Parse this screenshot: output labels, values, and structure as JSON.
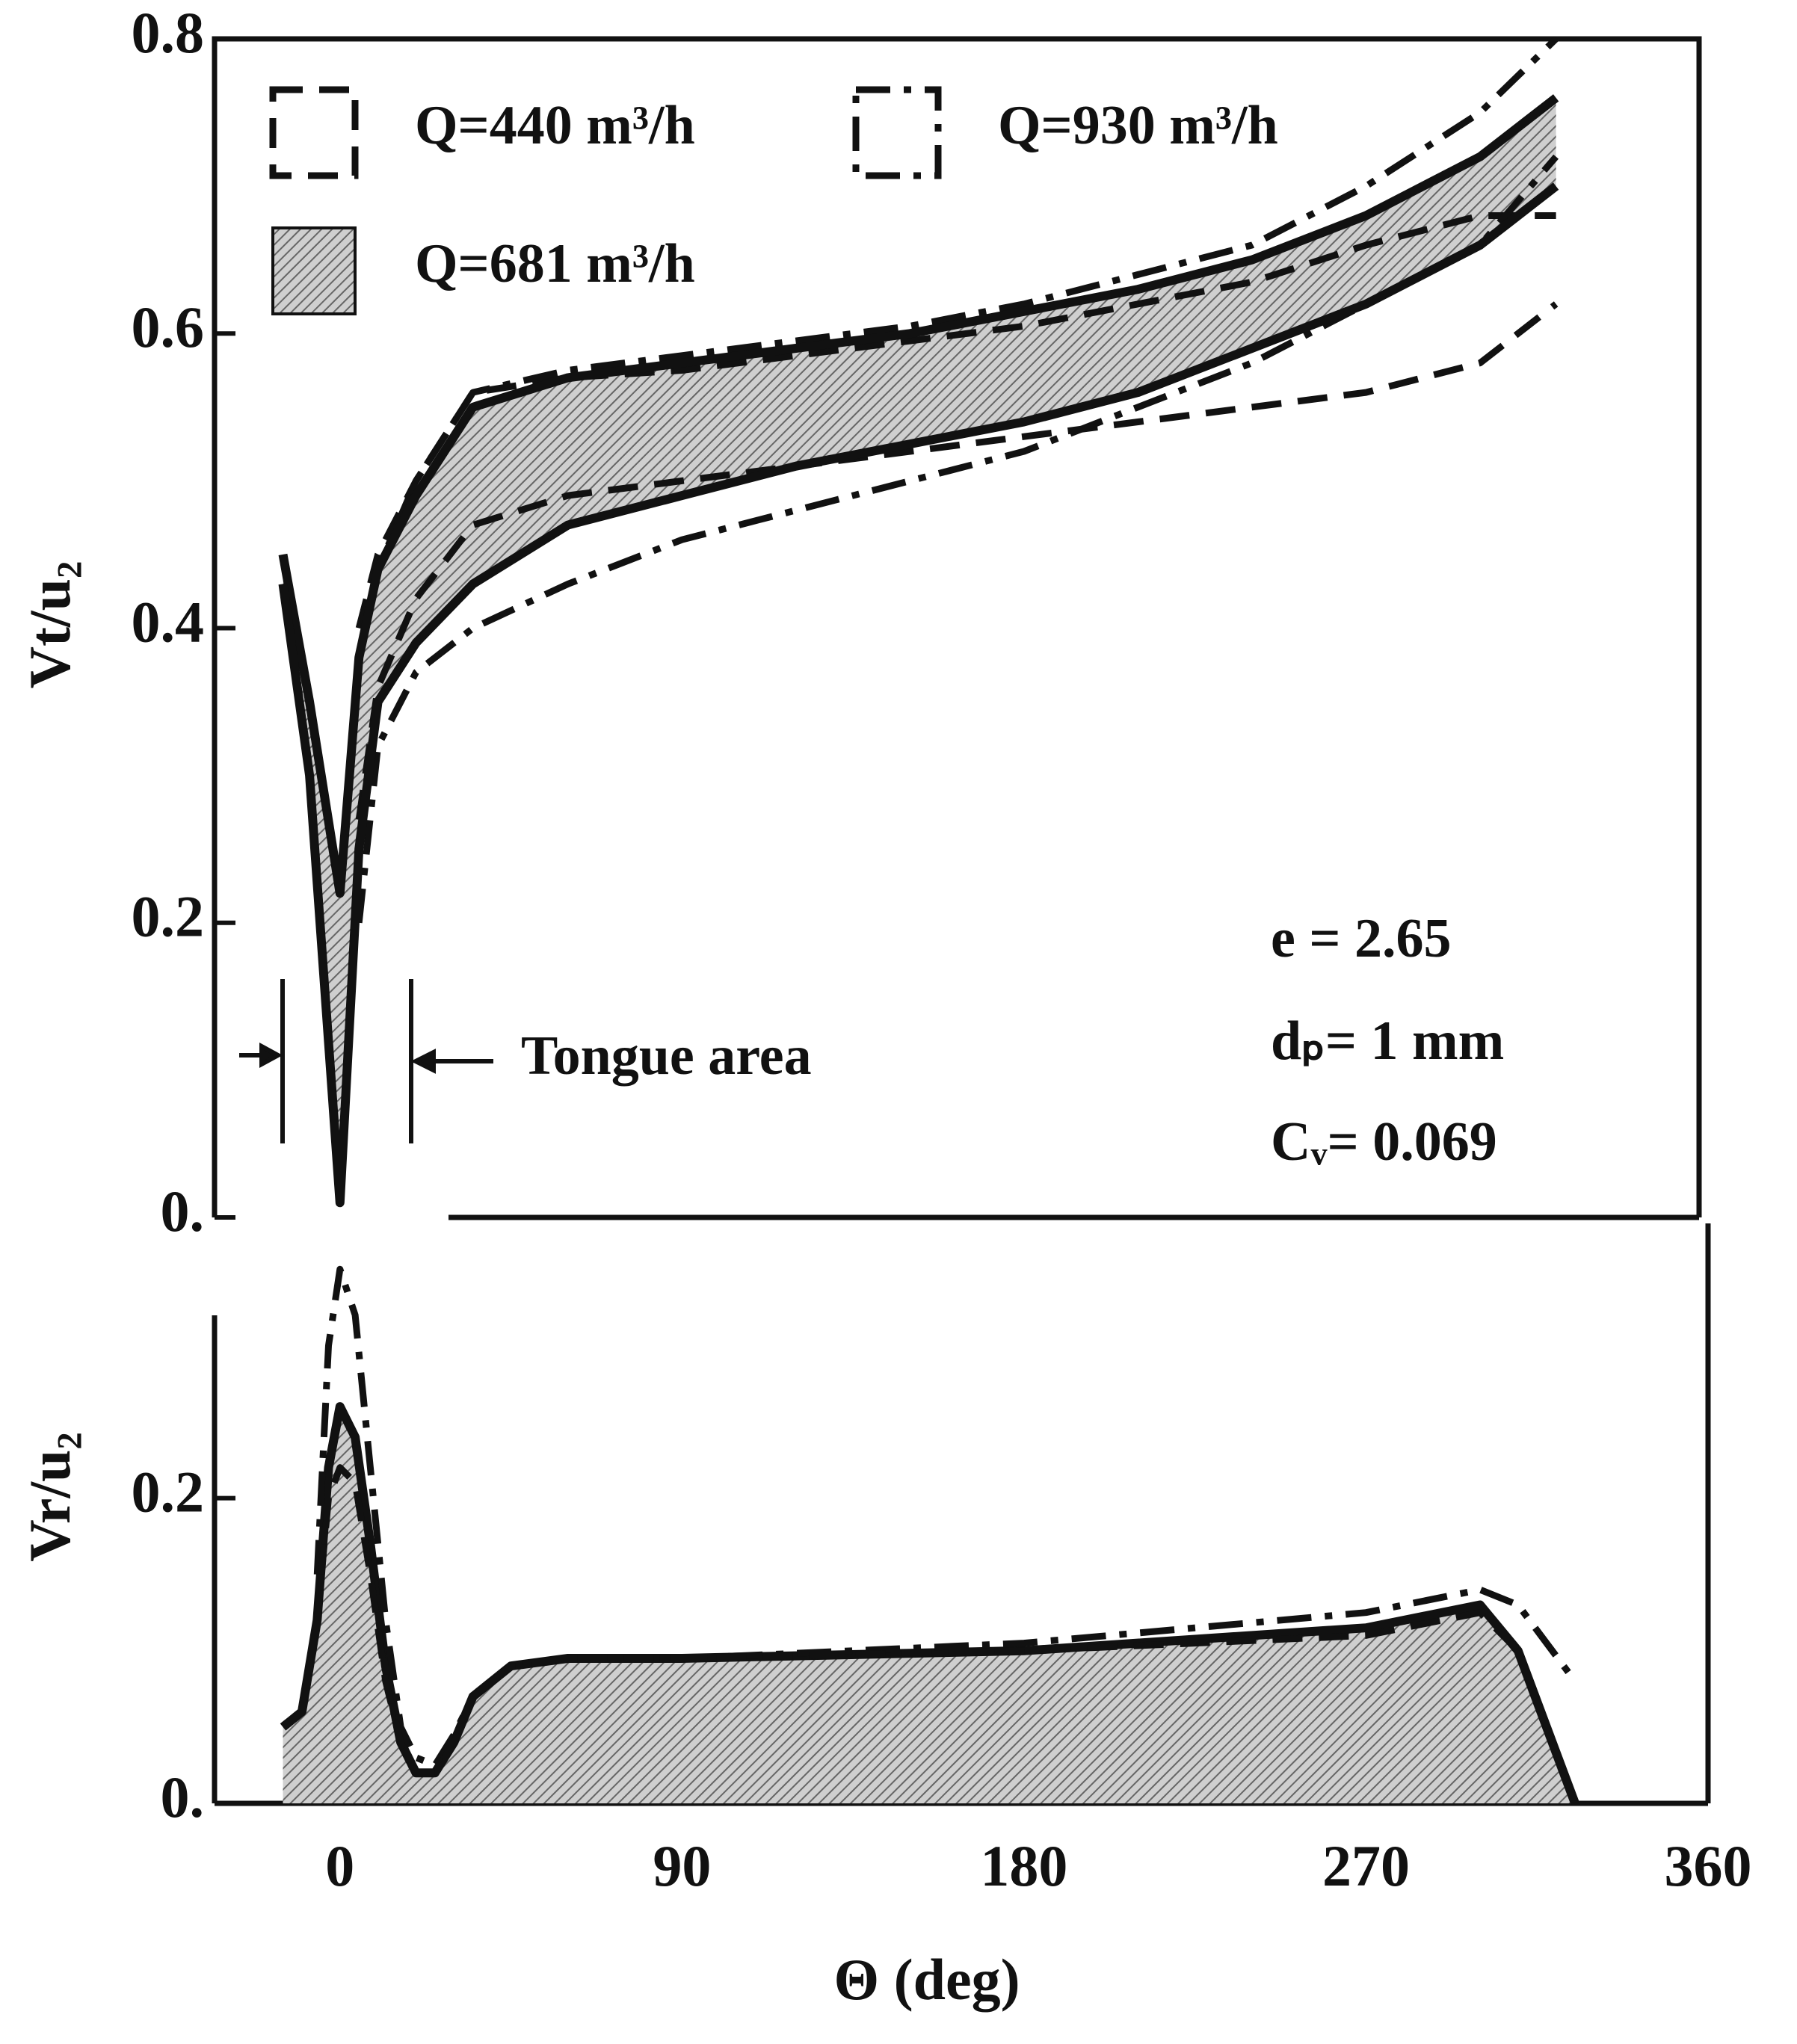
{
  "chart_data": [
    {
      "type": "band",
      "y_label": "Vt/u₂",
      "xlim": [
        -33,
        360
      ],
      "ylim": [
        0,
        0.8
      ],
      "yticks": [
        {
          "value": 0,
          "label": "0."
        },
        0.2,
        0.4,
        0.6,
        0.8
      ],
      "x": [
        -15,
        -8,
        0,
        5,
        10,
        20,
        35,
        60,
        90,
        120,
        150,
        180,
        210,
        240,
        270,
        300,
        320
      ],
      "series": [
        {
          "name": "Q=440 m³/h",
          "color": "#111111",
          "style": "dashed",
          "values": [
            null,
            null,
            null,
            0.4,
            0.45,
            0.5,
            0.56,
            0.57,
            0.575,
            0.585,
            0.595,
            0.605,
            0.62,
            0.635,
            0.66,
            0.68,
            0.68
          ],
          "lower": [
            null,
            null,
            null,
            0.27,
            0.36,
            0.42,
            0.47,
            0.49,
            0.5,
            0.51,
            0.52,
            0.53,
            0.54,
            0.55,
            0.56,
            0.58,
            0.62
          ]
        },
        {
          "name": "Q=930 m³/h",
          "color": "#111111",
          "style": "dashdot",
          "values": [
            null,
            null,
            null,
            0.38,
            0.44,
            0.5,
            0.56,
            0.575,
            0.585,
            0.595,
            0.605,
            0.62,
            0.64,
            0.66,
            0.7,
            0.75,
            0.8
          ],
          "lower": [
            null,
            null,
            null,
            0.2,
            0.32,
            0.37,
            0.4,
            0.43,
            0.46,
            0.48,
            0.5,
            0.52,
            0.55,
            0.58,
            0.62,
            0.66,
            0.72
          ]
        },
        {
          "name": "Q=681 m³/h",
          "color": "#111111",
          "style": "filled",
          "values": [
            0.45,
            0.35,
            0.22,
            0.38,
            0.44,
            0.49,
            0.55,
            0.57,
            0.58,
            0.59,
            0.6,
            0.615,
            0.63,
            0.65,
            0.68,
            0.72,
            0.76
          ],
          "lower": [
            0.43,
            0.3,
            0.01,
            0.25,
            0.35,
            0.39,
            0.43,
            0.47,
            0.49,
            0.51,
            0.525,
            0.54,
            0.56,
            0.59,
            0.62,
            0.66,
            0.7
          ]
        }
      ],
      "annotations": [
        "Tongue area",
        "e = 2.65",
        "dₚ= 1 mm",
        "Cᵥ= 0.069"
      ]
    },
    {
      "type": "area",
      "y_label": "Vr/u₂",
      "x_label": "Θ  (deg)",
      "xlim": [
        -33,
        360
      ],
      "ylim": [
        0,
        0.38
      ],
      "xticks": [
        0,
        90,
        180,
        270,
        360
      ],
      "yticks": [
        {
          "value": 0,
          "label": "0."
        },
        0.2
      ],
      "x": [
        -15,
        -10,
        -6,
        -3,
        0,
        4,
        8,
        12,
        16,
        20,
        25,
        30,
        35,
        45,
        60,
        90,
        180,
        270,
        300,
        310,
        325
      ],
      "series": [
        {
          "name": "Q=681 m³/h",
          "color": "#111111",
          "style": "filled",
          "values": [
            0.05,
            0.06,
            0.12,
            0.22,
            0.26,
            0.24,
            0.17,
            0.09,
            0.04,
            0.02,
            0.02,
            0.04,
            0.07,
            0.09,
            0.095,
            0.095,
            0.1,
            0.115,
            0.13,
            0.1,
            0
          ]
        },
        {
          "name": "Q=930 m³/h",
          "color": "#111111",
          "style": "dashdot",
          "values": [
            null,
            null,
            0.15,
            0.3,
            0.35,
            0.32,
            0.22,
            0.12,
            0.05,
            0.03,
            0.025,
            0.045,
            0.07,
            0.09,
            0.095,
            0.095,
            0.105,
            0.125,
            0.14,
            0.13,
            0.08
          ]
        },
        {
          "name": "Q=440 m³/h",
          "color": "#111111",
          "style": "dashed",
          "values": [
            null,
            null,
            0.12,
            0.2,
            0.22,
            0.21,
            0.15,
            0.08,
            0.04,
            0.02,
            0.02,
            0.04,
            0.07,
            0.09,
            0.095,
            0.095,
            0.1,
            0.11,
            0.125,
            0.1,
            null
          ]
        }
      ]
    }
  ]
}
